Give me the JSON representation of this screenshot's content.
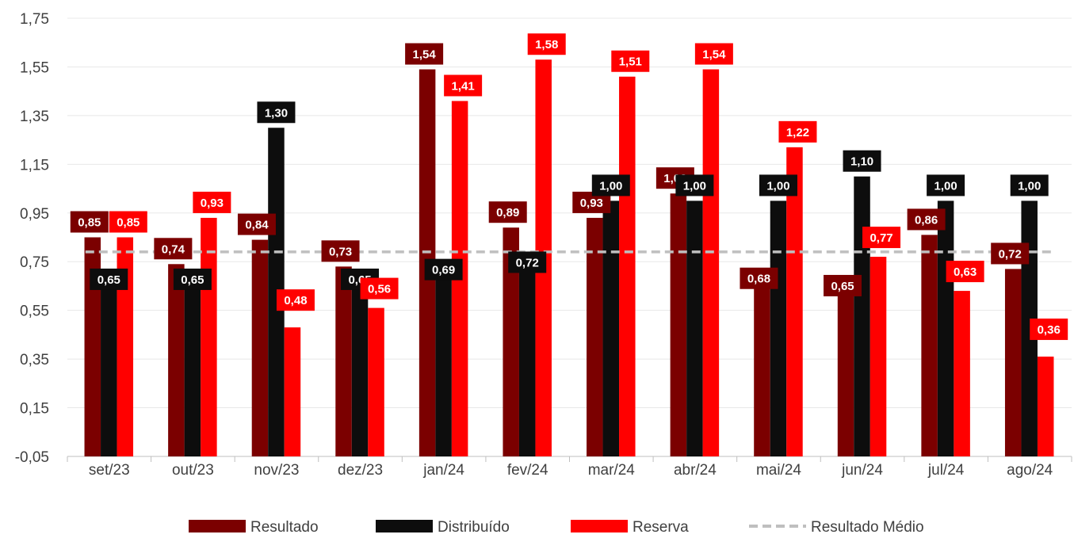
{
  "chart_data": {
    "type": "bar",
    "categories": [
      "set/23",
      "out/23",
      "nov/23",
      "dez/23",
      "jan/24",
      "fev/24",
      "mar/24",
      "abr/24",
      "mai/24",
      "jun/24",
      "jul/24",
      "ago/24"
    ],
    "series": [
      {
        "name": "Resultado",
        "color": "#7b0000",
        "values": [
          0.85,
          0.74,
          0.84,
          0.73,
          1.54,
          0.89,
          0.93,
          1.03,
          0.68,
          0.65,
          0.86,
          0.72
        ],
        "labels": [
          "0,85",
          "0,74",
          "0,84",
          "0,73",
          "1,54",
          "0,89",
          "0,93",
          "1,03",
          "0,68",
          "0,65",
          "0,86",
          "0,72"
        ]
      },
      {
        "name": "Distribuído",
        "color": "#0d0d0d",
        "values": [
          0.65,
          0.65,
          1.3,
          0.65,
          0.69,
          0.72,
          1.0,
          1.0,
          1.0,
          1.1,
          1.0,
          1.0
        ],
        "labels": [
          "0,65",
          "0,65",
          "1,30",
          "0,65",
          "0,69",
          "0,72",
          "1,00",
          "1,00",
          "1,00",
          "1,10",
          "1,00",
          "1,00"
        ]
      },
      {
        "name": "Reserva",
        "color": "#ff0000",
        "values": [
          0.85,
          0.93,
          0.48,
          0.56,
          1.41,
          1.58,
          1.51,
          1.54,
          1.22,
          0.77,
          0.63,
          0.36
        ],
        "labels": [
          "0,85",
          "0,93",
          "0,48",
          "0,56",
          "1,41",
          "1,58",
          "1,51",
          "1,54",
          "1,22",
          "0,77",
          "0,63",
          "0,36"
        ]
      }
    ],
    "reference_line": {
      "name": "Resultado Médio",
      "color": "#bfbfbf",
      "value": 0.79,
      "style": "dashed"
    },
    "y_ticks": [
      "-0,05",
      "0,15",
      "0,35",
      "0,55",
      "0,75",
      "0,95",
      "1,15",
      "1,35",
      "1,55",
      "1,75"
    ],
    "ylim": [
      -0.05,
      1.75
    ],
    "grid": true,
    "legend_position": "bottom"
  }
}
